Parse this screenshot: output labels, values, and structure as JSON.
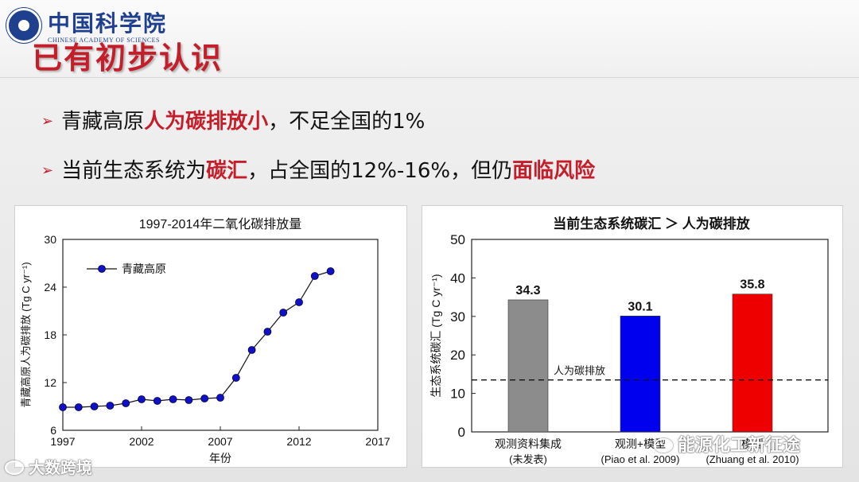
{
  "header": {
    "logo_cn": "中国科学院",
    "logo_en": "CHINESE ACADEMY OF SCIENCES",
    "title": "已有初步认识"
  },
  "bullets": [
    {
      "arrow": "➢",
      "pre": "青藏高原",
      "hl": "人为碳排放小",
      "post": "，不足全国的1%"
    },
    {
      "arrow": "➢",
      "pre": "当前生态系统为",
      "hl": "碳汇",
      "mid": "，占全国的12%-16%，但仍",
      "hl2": "面临风险"
    }
  ],
  "watermarks": {
    "left": "大数跨境",
    "right": "能源化工新征途"
  },
  "colors": {
    "accent_red": "#c41e2a",
    "line_blue": "#1010c8",
    "bar_gray": "#8c8c8c",
    "bar_blue": "#0000ee",
    "bar_red": "#ee0000"
  },
  "chart_data": [
    {
      "type": "line",
      "title": "1997-2014年二氧化碳排放量",
      "xlabel": "年份",
      "ylabel": "青藏高原人为碳排放 (Tg C yr⁻¹)",
      "xlim": [
        1997,
        2017
      ],
      "ylim": [
        6,
        30
      ],
      "xticks": [
        1997,
        2002,
        2007,
        2012,
        2017
      ],
      "yticks": [
        6,
        12,
        18,
        24,
        30
      ],
      "legend": "top-left",
      "series": [
        {
          "name": "青藏高原",
          "x": [
            1997,
            1998,
            1999,
            2000,
            2001,
            2002,
            2003,
            2004,
            2005,
            2006,
            2007,
            2008,
            2009,
            2010,
            2011,
            2012,
            2013,
            2014
          ],
          "y": [
            8.9,
            8.9,
            9.0,
            9.1,
            9.4,
            9.9,
            9.7,
            9.9,
            9.8,
            10.0,
            10.1,
            12.6,
            16.1,
            18.4,
            20.8,
            22.1,
            25.4,
            26.0
          ]
        }
      ]
    },
    {
      "type": "bar",
      "title": "当前生态系统碳汇 ＞ 人为碳排放",
      "ylabel": "生态系统碳汇 (Tg C yr⁻¹)",
      "ylim": [
        0,
        50
      ],
      "yticks": [
        0,
        10,
        20,
        30,
        40,
        50
      ],
      "categories": [
        {
          "line1": "观测资料集成",
          "line2": "(未发表)"
        },
        {
          "line1": "观测+模型",
          "line2": "(Piao et al. 2009)"
        },
        {
          "line1": "模型",
          "line2": "(Zhuang et al. 2010)"
        }
      ],
      "values": [
        34.3,
        30.1,
        35.8
      ],
      "value_labels": [
        "34.3",
        "30.1",
        "35.8"
      ],
      "reference_line": {
        "label": "人为碳排放",
        "value": 13.5
      }
    }
  ]
}
